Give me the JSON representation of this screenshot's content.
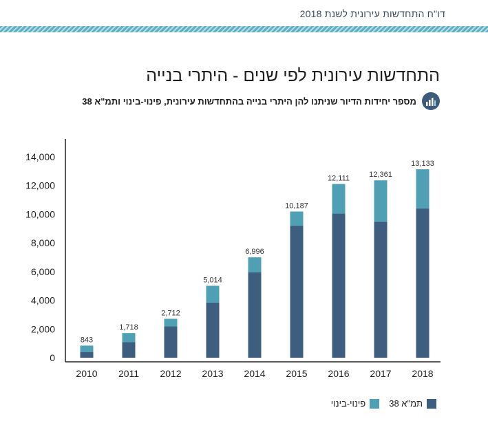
{
  "header": {
    "title": "דו\"ח התחדשות עירונית לשנת 2018"
  },
  "colors": {
    "primary": "#3e5e80",
    "secondary": "#4fa0b5",
    "stripe": "#5fb0c4"
  },
  "chart_data": {
    "type": "bar",
    "stacked": true,
    "title": "התחדשות עירונית לפי שנים - היתרי בנייה",
    "subtitle": "מספר יחידות הדיור שניתנו להן היתרי בנייה בהתחדשות עירונית, פינוי-בינוי ותמ\"א 38",
    "categories": [
      "2010",
      "2011",
      "2012",
      "2013",
      "2014",
      "2015",
      "2016",
      "2017",
      "2018"
    ],
    "series": [
      {
        "name": "תמ\"א 38",
        "color": "#3e5e80",
        "values": [
          400,
          1080,
          2180,
          3850,
          5950,
          9200,
          10050,
          9480,
          10400
        ]
      },
      {
        "name": "פינוי-בינוי",
        "color": "#4fa0b5",
        "values": [
          443,
          638,
          532,
          1164,
          1046,
          987,
          2061,
          2881,
          2733
        ]
      }
    ],
    "totals": [
      "843",
      "1,718",
      "2,712",
      "5,014",
      "6,996",
      "10,187",
      "12,111",
      "12,361",
      "13,133"
    ],
    "ylim": [
      0,
      14000
    ],
    "yticks": [
      "0",
      "2,000",
      "4,000",
      "6,000",
      "8,000",
      "10,000",
      "12,000",
      "14,000"
    ],
    "xlabel": "",
    "ylabel": "",
    "grid": false,
    "legend_position": "bottom-right"
  }
}
